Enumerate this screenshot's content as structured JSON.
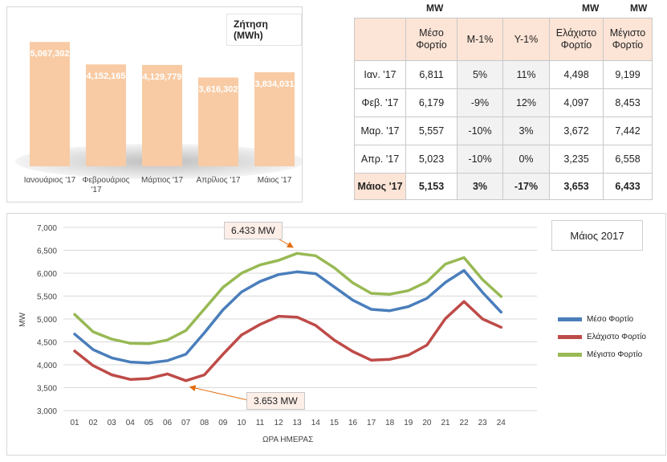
{
  "colors": {
    "bar_fill": "#f8cba4",
    "avg_line": "#4a7ebb",
    "min_line": "#be4b48",
    "max_line": "#98b954",
    "arrow": "#e46c0a",
    "header_fill": "#fce4d6"
  },
  "chart_data": [
    {
      "type": "bar",
      "title": "Ζήτηση (MWh)",
      "categories": [
        "Ιανουάριος '17",
        "Φεβρουάριος '17",
        "Μάρτιος '17",
        "Απρίλιος '17",
        "Μάιος '17"
      ],
      "values": [
        5067302,
        4152165,
        4129779,
        3616302,
        3834031
      ],
      "value_labels": [
        "5,067,302",
        "4,152,165",
        "4,129,779",
        "3,616,302",
        "3,834,031"
      ],
      "ylim": [
        0,
        5500000
      ],
      "grid": false
    },
    {
      "type": "line",
      "title": "Μάιος 2017",
      "xlabel": "ΩΡΑ ΗΜΕΡΑΣ",
      "ylabel": "MW",
      "x": [
        "01",
        "02",
        "03",
        "04",
        "05",
        "06",
        "07",
        "08",
        "09",
        "10",
        "11",
        "12",
        "13",
        "14",
        "15",
        "16",
        "17",
        "18",
        "19",
        "20",
        "21",
        "22",
        "23",
        "24"
      ],
      "y_ticks": [
        "3,000",
        "3,500",
        "4,000",
        "4,500",
        "5,000",
        "5,500",
        "6,000",
        "6,500",
        "7,000"
      ],
      "ylim": [
        3000,
        7000
      ],
      "grid": true,
      "legend_position": "right",
      "series": [
        {
          "name": "Μέσο Φορτίο",
          "values": [
            4670,
            4330,
            4150,
            4060,
            4040,
            4090,
            4230,
            4700,
            5200,
            5590,
            5820,
            5970,
            6030,
            5990,
            5700,
            5410,
            5210,
            5180,
            5270,
            5450,
            5800,
            6060,
            5580,
            5150
          ]
        },
        {
          "name": "Ελάχιστο Φορτίο",
          "values": [
            4300,
            3980,
            3780,
            3680,
            3700,
            3800,
            3653,
            3780,
            4230,
            4650,
            4880,
            5060,
            5040,
            4860,
            4540,
            4290,
            4100,
            4120,
            4210,
            4430,
            5010,
            5380,
            5000,
            4820
          ]
        },
        {
          "name": "Μέγιστο Φορτίο",
          "values": [
            5100,
            4720,
            4560,
            4470,
            4460,
            4540,
            4750,
            5220,
            5690,
            6000,
            6180,
            6280,
            6433,
            6380,
            6120,
            5790,
            5560,
            5540,
            5620,
            5810,
            6200,
            6340,
            5860,
            5490
          ]
        }
      ],
      "annotations": [
        {
          "text": "6.433 MW",
          "x": "13",
          "y": 6433
        },
        {
          "text": "3.653 MW",
          "x": "07",
          "y": 3653
        }
      ]
    }
  ],
  "table": {
    "unit_labels": [
      "MW",
      "MW",
      "MW"
    ],
    "headers": [
      "",
      "Μέσο Φορτίο",
      "Μ-1%",
      "Υ-1%",
      "Ελάχιστο Φορτίο",
      "Μέγιστο Φορτίο"
    ],
    "rows": [
      [
        "Ιαν. '17",
        "6,811",
        "5%",
        "11%",
        "4,498",
        "9,199"
      ],
      [
        "Φεβ. '17",
        "6,179",
        "-9%",
        "12%",
        "4,097",
        "8,453"
      ],
      [
        "Μαρ. '17",
        "5,557",
        "-10%",
        "3%",
        "3,672",
        "7,442"
      ],
      [
        "Απρ. '17",
        "5,023",
        "-10%",
        "0%",
        "3,235",
        "6,558"
      ],
      [
        "Μάιος '17",
        "5,153",
        "3%",
        "-17%",
        "3,653",
        "6,433"
      ]
    ]
  }
}
